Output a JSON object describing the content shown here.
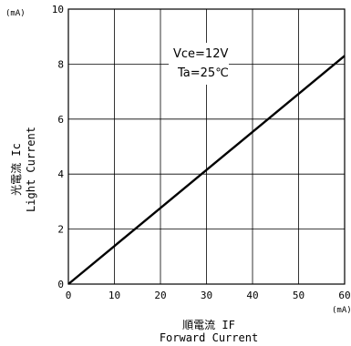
{
  "chart_data": {
    "type": "line",
    "x_unit": "(mA)",
    "y_unit": "(mA)",
    "xlabel_jp": "順電流 IF",
    "xlabel_en": "Forward Current",
    "ylabel_jp": "光電流 Ic",
    "ylabel_en": "Light Current",
    "xlim": [
      0,
      60
    ],
    "ylim": [
      0,
      10
    ],
    "x_ticks": [
      0,
      10,
      20,
      30,
      40,
      50,
      60
    ],
    "y_ticks": [
      0,
      2,
      4,
      6,
      8,
      10
    ],
    "grid": true,
    "annotations": [
      "Vce=12V",
      "Ta=25℃"
    ],
    "series": [
      {
        "x": [
          0,
          60
        ],
        "y": [
          0,
          8.3
        ]
      }
    ]
  }
}
